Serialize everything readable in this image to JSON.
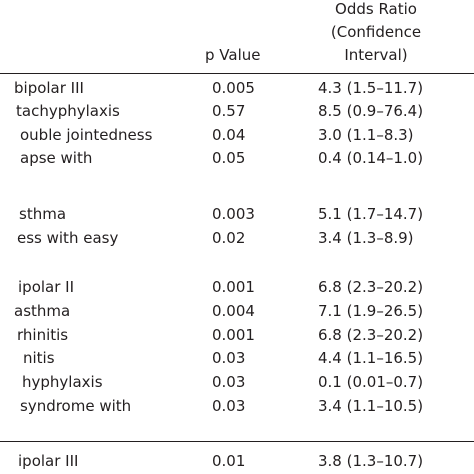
{
  "header": {
    "odds_ratio": [
      "Odds Ratio",
      "(Confidence",
      "Interval)"
    ],
    "p_value": "p Value"
  },
  "table": {
    "rows": [
      [
        "bipolar III",
        "0.005",
        "4.3 (1.5–11.7)"
      ],
      [
        "tachyphylaxis",
        "0.57",
        "8.5 (0.9–76.4)"
      ],
      [
        "ouble jointedness",
        "0.04",
        "3.0 (1.1–8.3)"
      ],
      [
        "apse with",
        "0.05",
        "0.4 (0.14–1.0)"
      ],
      [
        "sthma",
        "0.003",
        "5.1 (1.7–14.7)"
      ],
      [
        "ess with easy",
        "0.02",
        "3.4 (1.3–8.9)"
      ],
      [
        "ipolar II",
        "0.001",
        "6.8 (2.3–20.2)"
      ],
      [
        "asthma",
        "0.004",
        "7.1 (1.9–26.5)"
      ],
      [
        "rhinitis",
        "0.001",
        "6.8 (2.3–20.2)"
      ],
      [
        "nitis",
        "0.03",
        "4.4 (1.1–16.5)"
      ],
      [
        "hyphylaxis",
        "0.03",
        "0.1 (0.01–0.7)"
      ],
      [
        "syndrome with",
        "0.03",
        "3.4 (1.1–10.5)"
      ],
      [
        "ipolar III",
        "0.01",
        "3.8 (1.3–10.7)"
      ]
    ]
  }
}
